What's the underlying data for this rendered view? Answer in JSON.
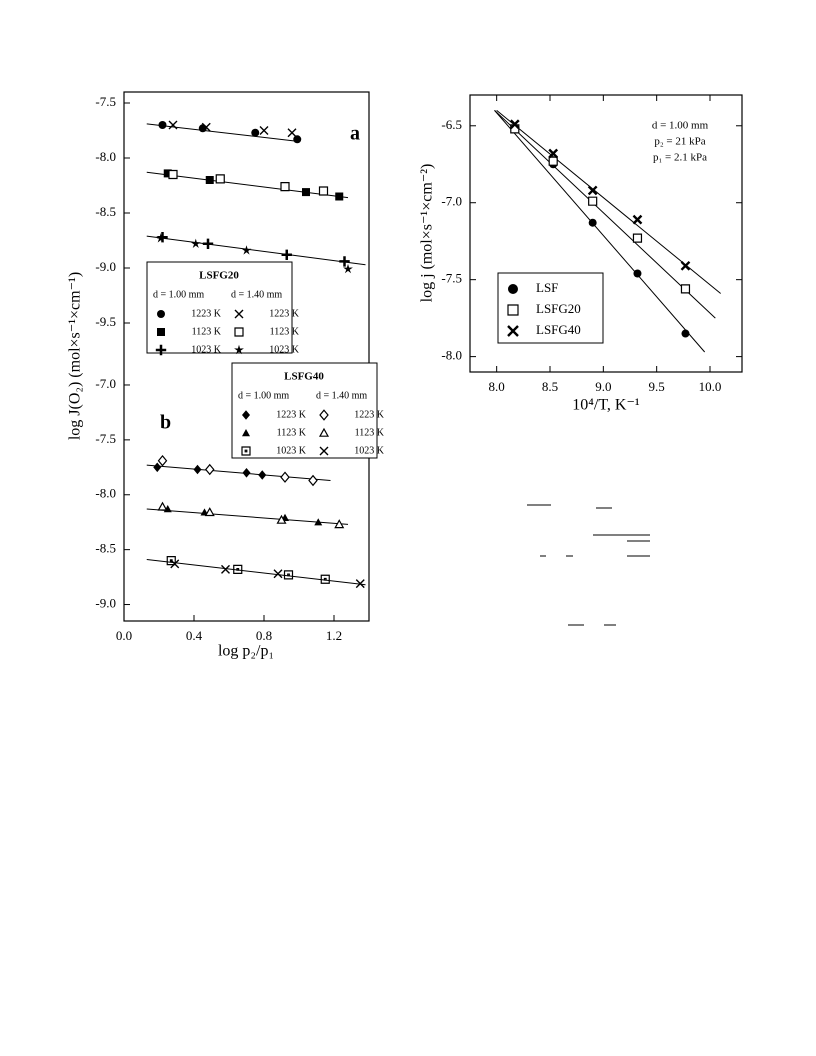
{
  "chart_data": [
    {
      "type": "scatter",
      "panel_label": "a",
      "ylabel": "log J(O₂)  (mol×s⁻¹×cm⁻¹)",
      "xlim": [
        0,
        1.4
      ],
      "ylim": [
        -9.7,
        -7.4
      ],
      "yticks": [
        -7.5,
        {
          "value": -8.0,
          "label": "-8.0"
        },
        -8.5,
        {
          "value": -9.0,
          "label": "-9.0"
        },
        -9.5
      ],
      "legend": {
        "title": "LSFG20",
        "columns": [
          "d = 1.00 mm",
          "d = 1.40 mm"
        ]
      },
      "series": [
        {
          "name": "1223 K",
          "marker": "circle",
          "color": "#000000",
          "x": [
            0.22,
            0.45,
            0.75,
            0.99
          ],
          "y": [
            -7.7,
            -7.73,
            -7.77,
            -7.83
          ]
        },
        {
          "name": "1223 K",
          "marker": "x",
          "color": "#000000",
          "x": [
            0.28,
            0.47,
            0.8,
            0.96
          ],
          "y": [
            -7.7,
            -7.72,
            -7.75,
            -7.77
          ]
        },
        {
          "name": "1123 K",
          "marker": "square",
          "color": "#000000",
          "x": [
            0.25,
            0.49,
            1.04,
            1.23
          ],
          "y": [
            -8.14,
            -8.2,
            -8.31,
            -8.35
          ]
        },
        {
          "name": "1123 K",
          "marker": "open-square",
          "color": "#000000",
          "x": [
            0.28,
            0.55,
            0.92,
            1.14
          ],
          "y": [
            -8.15,
            -8.19,
            -8.26,
            -8.3
          ]
        },
        {
          "name": "1023 K",
          "marker": "plus",
          "color": "#000000",
          "x": [
            0.22,
            0.48,
            0.93,
            1.26
          ],
          "y": [
            -8.72,
            -8.78,
            -8.88,
            -8.94
          ]
        },
        {
          "name": "1023 K",
          "marker": "star",
          "color": "#000000",
          "x": [
            0.21,
            0.41,
            0.7,
            1.28
          ],
          "y": [
            -8.73,
            -8.78,
            -8.84,
            -9.01
          ]
        }
      ],
      "fit_lines": [
        {
          "x": [
            0.13,
            1.0
          ],
          "y": [
            -7.69,
            -7.85
          ]
        },
        {
          "x": [
            0.13,
            1.28
          ],
          "y": [
            -8.13,
            -8.36
          ]
        },
        {
          "x": [
            0.13,
            1.38
          ],
          "y": [
            -8.71,
            -8.97
          ]
        }
      ]
    },
    {
      "type": "scatter",
      "panel_label": "b",
      "xlabel": "log  p₂/p₁",
      "xlim": [
        0,
        1.4
      ],
      "ylim": [
        -9.15,
        -6.9
      ],
      "xticks": [
        {
          "value": 0.0,
          "label": "0.0"
        },
        0.4,
        0.8,
        1.2
      ],
      "yticks": [
        {
          "value": -7.0,
          "label": "-7.0"
        },
        -7.5,
        {
          "value": -8.0,
          "label": "-8.0"
        },
        -8.5,
        {
          "value": -9.0,
          "label": "-9.0"
        }
      ],
      "legend": {
        "title": "LSFG40",
        "columns": [
          "d = 1.00 mm",
          "d = 1.40 mm"
        ]
      },
      "series": [
        {
          "name": "1223 K",
          "marker": "diamond",
          "color": "#000000",
          "x": [
            0.19,
            0.42,
            0.7,
            0.79
          ],
          "y": [
            -7.75,
            -7.77,
            -7.8,
            -7.82
          ]
        },
        {
          "name": "1223 K",
          "marker": "open-diamond",
          "color": "#000000",
          "x": [
            0.22,
            0.49,
            0.92,
            1.08
          ],
          "y": [
            -7.69,
            -7.77,
            -7.84,
            -7.87
          ]
        },
        {
          "name": "1123 K",
          "marker": "triangle",
          "color": "#000000",
          "x": [
            0.25,
            0.46,
            0.92,
            1.11
          ],
          "y": [
            -8.13,
            -8.16,
            -8.21,
            -8.25
          ]
        },
        {
          "name": "1123 K",
          "marker": "open-triangle",
          "color": "#000000",
          "x": [
            0.22,
            0.49,
            0.9,
            1.23
          ],
          "y": [
            -8.11,
            -8.16,
            -8.23,
            -8.27
          ]
        },
        {
          "name": "1023 K",
          "marker": "boxed-dot",
          "color": "#000000",
          "x": [
            0.27,
            0.65,
            0.94,
            1.15
          ],
          "y": [
            -8.6,
            -8.68,
            -8.73,
            -8.77
          ]
        },
        {
          "name": "1023 K",
          "marker": "x",
          "color": "#000000",
          "x": [
            0.29,
            0.58,
            0.88,
            1.35
          ],
          "y": [
            -8.63,
            -8.68,
            -8.72,
            -8.81
          ]
        }
      ],
      "fit_lines": [
        {
          "x": [
            0.13,
            1.18
          ],
          "y": [
            -7.73,
            -7.87
          ]
        },
        {
          "x": [
            0.13,
            1.28
          ],
          "y": [
            -8.13,
            -8.27
          ]
        },
        {
          "x": [
            0.13,
            1.38
          ],
          "y": [
            -8.59,
            -8.82
          ]
        }
      ]
    },
    {
      "type": "scatter",
      "xlabel": "10⁴/T, K⁻¹",
      "ylabel": "log j  (mol×s⁻¹×cm⁻²)",
      "annotations": [
        "d = 1.00 mm",
        "p₂ = 21 kPa",
        "p₁ = 2.1 kPa"
      ],
      "xlim": [
        7.75,
        10.3
      ],
      "ylim": [
        -8.1,
        -6.3
      ],
      "xticks": [
        {
          "value": 8.0,
          "label": "8.0"
        },
        8.5,
        {
          "value": 9.0,
          "label": "9.0"
        },
        9.5,
        {
          "value": 10.0,
          "label": "10.0"
        }
      ],
      "yticks": [
        -6.5,
        {
          "value": -7.0,
          "label": "-7.0"
        },
        -7.5,
        {
          "value": -8.0,
          "label": "-8.0"
        }
      ],
      "legend": {
        "position": "bottom-left"
      },
      "series": [
        {
          "name": "LSF",
          "marker": "circle",
          "color": "#000000",
          "x": [
            8.17,
            8.53,
            8.9,
            9.32,
            9.77
          ],
          "y": [
            -6.52,
            -6.75,
            -7.13,
            -7.46,
            -7.85
          ]
        },
        {
          "name": "LSFG20",
          "marker": "open-square",
          "color": "#000000",
          "x": [
            8.17,
            8.53,
            8.9,
            9.32,
            9.77
          ],
          "y": [
            -6.52,
            -6.73,
            -6.99,
            -7.23,
            -7.56
          ]
        },
        {
          "name": "LSFG40",
          "marker": "x-star",
          "color": "#000000",
          "x": [
            8.17,
            8.53,
            8.9,
            9.32,
            9.77
          ],
          "y": [
            -6.49,
            -6.68,
            -6.92,
            -7.11,
            -7.41
          ]
        }
      ],
      "fit_lines": [
        {
          "x": [
            7.98,
            9.95
          ],
          "y": [
            -6.4,
            -7.97
          ]
        },
        {
          "x": [
            7.98,
            10.05
          ],
          "y": [
            -6.4,
            -7.75
          ]
        },
        {
          "x": [
            8.0,
            10.1
          ],
          "y": [
            -6.4,
            -7.59
          ]
        }
      ]
    }
  ]
}
